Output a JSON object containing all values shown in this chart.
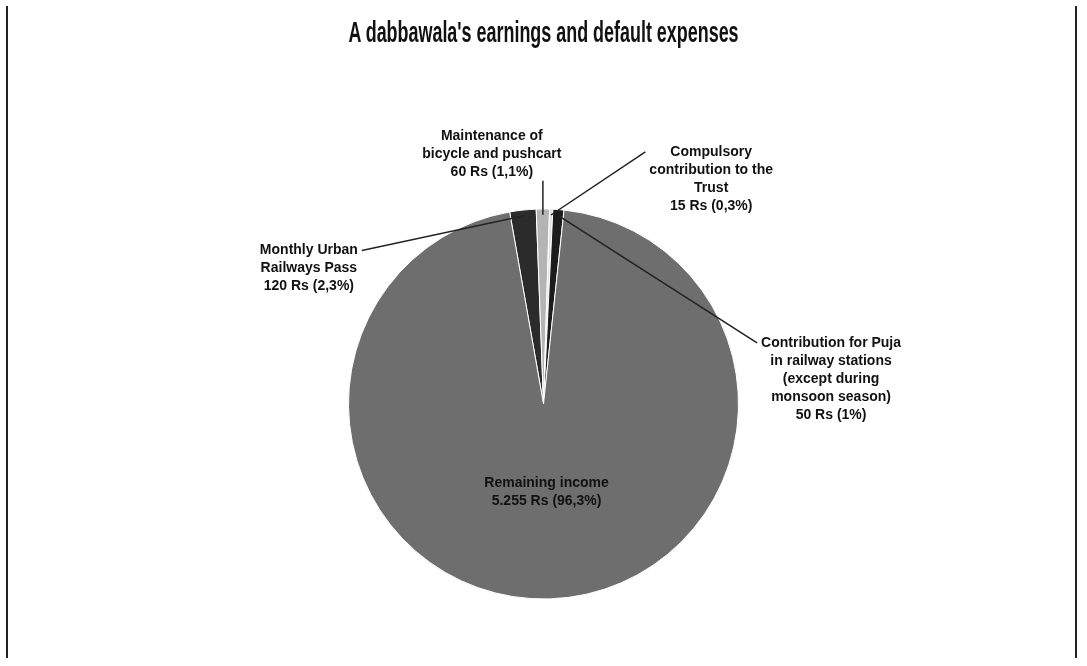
{
  "chart_data": {
    "type": "pie",
    "title": "A dabbawala's earnings and default expenses",
    "categories": [
      "Monthly Urban Railways Pass",
      "Maintenance of bicycle and pushcart",
      "Compulsory contribution to the Trust",
      "Contribution for Puja in railway stations (except during monsoon season)",
      "Remaining income"
    ],
    "values": [
      120,
      60,
      15,
      50,
      5255
    ],
    "colors": [
      "#2b2b2b",
      "#b4b4b4",
      "#e2e2e2",
      "#1c1c1c",
      "#6e6e6e"
    ],
    "value_labels": [
      "120 Rs (2,3%)",
      "60 Rs (1,1%)",
      "15 Rs (0,3%)",
      "50 Rs (1%)",
      "5.255 Rs (96,3%)"
    ]
  }
}
